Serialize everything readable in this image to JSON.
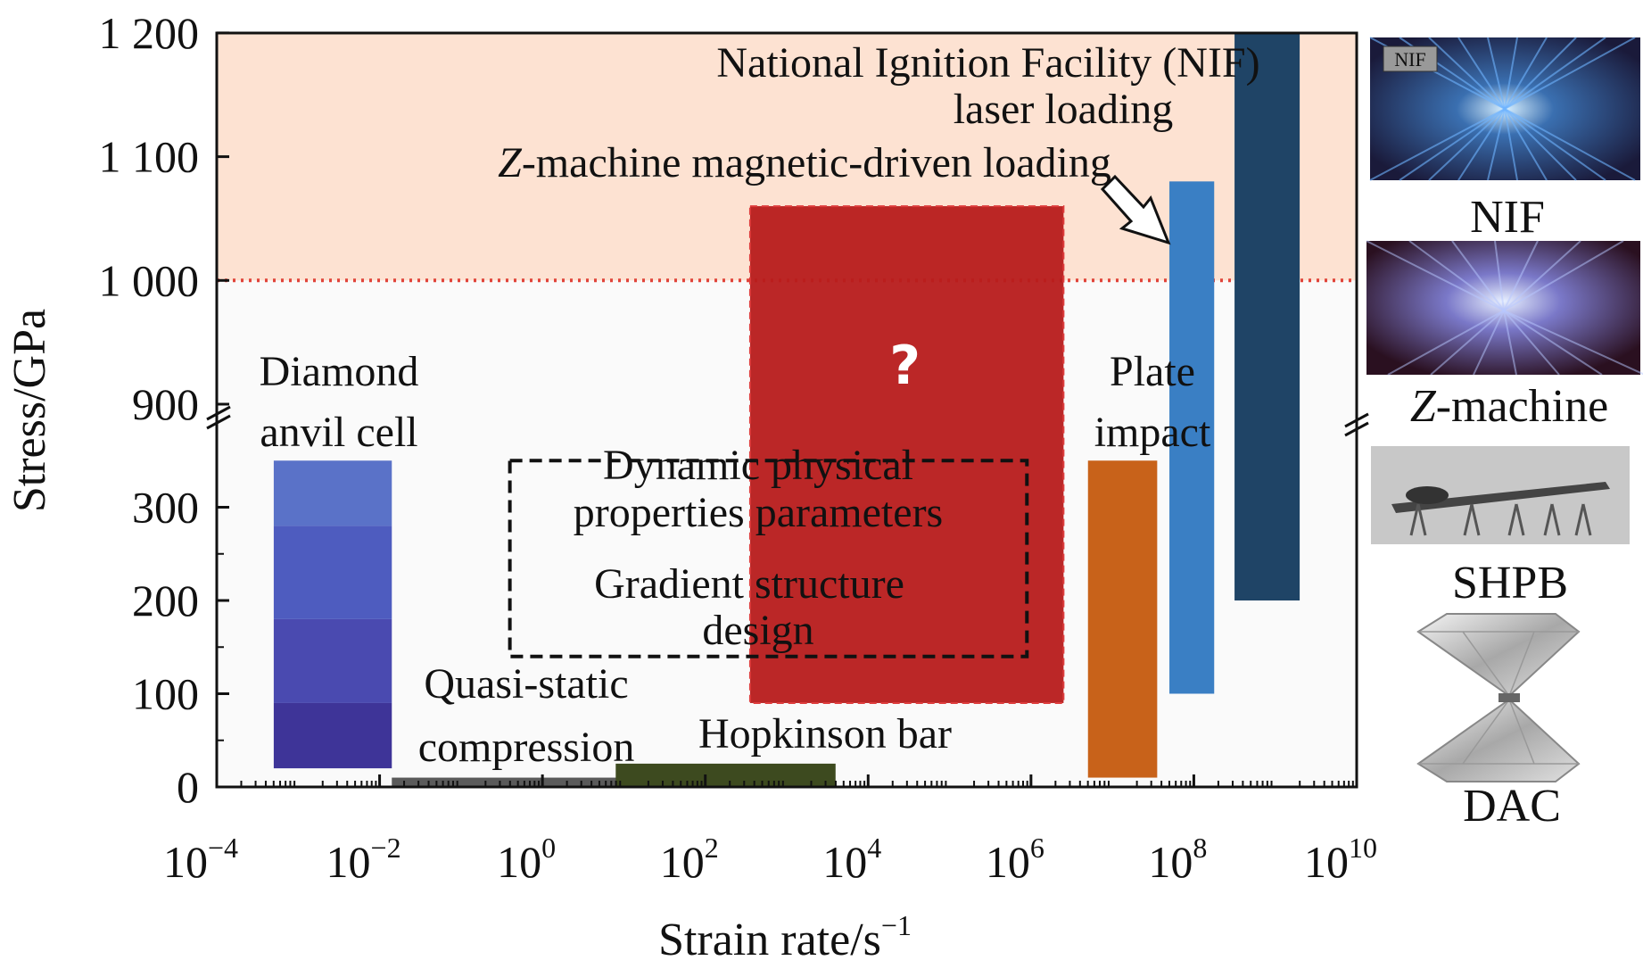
{
  "chart_data": {
    "type": "range-bar",
    "xlabel": "Strain rate/s",
    "xlabel_sup": "−1",
    "ylabel": "Stress/GPa",
    "x_scale": "log",
    "x_ticks": [
      {
        "base": "10",
        "exp": "−4",
        "value": -4
      },
      {
        "base": "10",
        "exp": "−2",
        "value": -2
      },
      {
        "base": "10",
        "exp": "0",
        "value": 0
      },
      {
        "base": "10",
        "exp": "2",
        "value": 2
      },
      {
        "base": "10",
        "exp": "4",
        "value": 4
      },
      {
        "base": "10",
        "exp": "6",
        "value": 6
      },
      {
        "base": "10",
        "exp": "8",
        "value": 8
      },
      {
        "base": "10",
        "exp": "10",
        "value": 10
      }
    ],
    "xlim": [
      -4,
      10
    ],
    "y_axis": "broken between 350 and 900 GPa",
    "y_ticks_lower": [
      {
        "label": "0",
        "value": 0
      },
      {
        "label": "100",
        "value": 100
      },
      {
        "label": "200",
        "value": 200
      },
      {
        "label": "300",
        "value": 300
      }
    ],
    "y_ticks_upper": [
      {
        "label": "900",
        "value": 900
      },
      {
        "label": "1 000",
        "value": 1000
      },
      {
        "label": "1 100",
        "value": 1100
      },
      {
        "label": "1 200",
        "value": 1200
      }
    ],
    "threshold": {
      "value": 1000,
      "style": "dotted",
      "color": "#e0443a",
      "shaded_above": "#fde2d2"
    },
    "bars": [
      {
        "label": "Diamond anvil cell",
        "x": [
          -3.3,
          -1.85
        ],
        "y": [
          20,
          350
        ],
        "color": "#4a4ab8"
      },
      {
        "label": "Quasi-static compression",
        "x": [
          -1.85,
          1.0
        ],
        "y": [
          0,
          10
        ],
        "color": "#5a5a5a"
      },
      {
        "label": "Hopkinson bar",
        "x": [
          0.9,
          3.6
        ],
        "y": [
          0,
          25
        ],
        "color": "#3d4a1f"
      },
      {
        "label": "Plate impact",
        "x": [
          6.7,
          7.55
        ],
        "y": [
          10,
          350
        ],
        "color": "#c8621a"
      },
      {
        "label": "Z-machine magnetic-driven loading",
        "x": [
          7.7,
          8.25
        ],
        "y": [
          100,
          1080
        ],
        "color": "#3a7fc4"
      },
      {
        "label": "National Ignition Facility (NIF) laser loading",
        "x": [
          8.5,
          9.3
        ],
        "y": [
          200,
          1200
        ],
        "color": "#1f4466"
      }
    ],
    "unknown_region": {
      "label": "?",
      "x": [
        2.55,
        6.4
      ],
      "y": [
        90,
        1060
      ],
      "color": "#b81c1c"
    },
    "dashed_box": {
      "x": [
        -0.4,
        5.95
      ],
      "y": [
        140,
        380
      ],
      "lines": [
        "Dynamic physical",
        "properties parameters",
        "Gradient  structure",
        "design"
      ]
    },
    "annotations": {
      "dac": [
        "Diamond",
        "anvil cell"
      ],
      "quasi": [
        "Quasi-static",
        "compression"
      ],
      "hopkinson": "Hopkinson bar",
      "plate": [
        "Plate",
        "impact"
      ],
      "zmachine_italic": "Z",
      "zmachine_rest": "-machine magnetic-driven loading",
      "nif": [
        "National Ignition Facility (NIF)",
        "laser loading"
      ]
    },
    "side_panel": {
      "nif_badge": "NIF",
      "nif": "NIF",
      "zmachine_italic": "Z",
      "zmachine_rest": "-machine",
      "shpb": "SHPB",
      "dac": "DAC"
    }
  }
}
